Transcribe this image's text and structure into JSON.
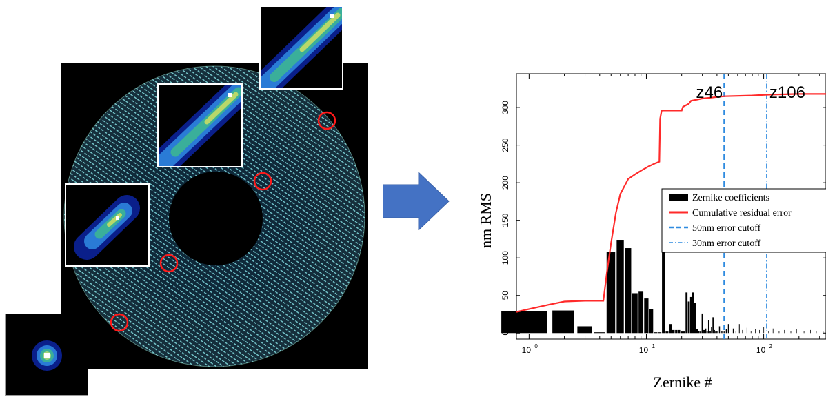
{
  "colors": {
    "arrow": "#4472c4",
    "cumulative_line": "#ff2a2a",
    "cutoff_line": "#2f8be0",
    "bars": "#000000",
    "circle_marker": "#ff1a1a"
  },
  "icons": {
    "arrow": "right-arrow-icon"
  },
  "chart_data": {
    "type": "bar",
    "xscale": "log",
    "xlabel": "Zernike #",
    "ylabel": "nm RMS",
    "xlim": [
      0.78,
      340
    ],
    "ylim": [
      -8,
      345
    ],
    "yticks": [
      0,
      50,
      100,
      150,
      200,
      250,
      300
    ],
    "xticks": [
      {
        "value": 1,
        "base": "10",
        "exp": "0"
      },
      {
        "value": 10,
        "base": "10",
        "exp": "1"
      },
      {
        "value": 100,
        "base": "10",
        "exp": "2"
      }
    ],
    "legend": {
      "placement": "center-right",
      "entries": [
        "Zernike coefficients",
        "Cumulative residual error",
        "50nm error cutoff",
        "30nm error cutoff"
      ]
    },
    "annotations": [
      {
        "text": "z46",
        "x": 46
      },
      {
        "text": "z106",
        "x": 106
      }
    ],
    "cutoffs": [
      {
        "name": "50nm error cutoff",
        "x": 46,
        "style": "dashed"
      },
      {
        "name": "30nm error cutoff",
        "x": 106,
        "style": "dashdot"
      }
    ],
    "series": [
      {
        "name": "Zernike coefficients",
        "kind": "bar",
        "bars": [
          [
            1,
            29
          ],
          [
            2,
            30
          ],
          [
            3,
            9
          ],
          [
            4,
            1
          ],
          [
            5,
            108
          ],
          [
            6,
            124
          ],
          [
            7,
            113
          ],
          [
            8,
            53
          ],
          [
            9,
            55
          ],
          [
            10,
            46
          ],
          [
            11,
            32
          ],
          [
            12,
            1
          ],
          [
            13,
            1
          ],
          [
            14,
            188
          ],
          [
            15,
            2
          ],
          [
            16,
            12
          ],
          [
            17,
            4
          ],
          [
            18,
            4
          ],
          [
            19,
            4
          ],
          [
            20,
            2
          ],
          [
            21,
            2
          ],
          [
            22,
            54
          ],
          [
            23,
            42
          ],
          [
            24,
            48
          ],
          [
            25,
            54
          ],
          [
            26,
            40
          ],
          [
            27,
            5
          ],
          [
            28,
            3
          ],
          [
            29,
            2
          ],
          [
            30,
            26
          ],
          [
            31,
            4
          ],
          [
            32,
            6
          ],
          [
            33,
            2
          ],
          [
            34,
            17
          ],
          [
            35,
            3
          ],
          [
            36,
            8
          ],
          [
            37,
            21
          ],
          [
            38,
            4
          ],
          [
            39,
            2
          ],
          [
            40,
            3
          ],
          [
            42,
            9
          ],
          [
            44,
            3
          ],
          [
            46,
            2
          ],
          [
            48,
            5
          ],
          [
            50,
            12
          ],
          [
            55,
            6
          ],
          [
            58,
            3
          ],
          [
            62,
            12
          ],
          [
            66,
            4
          ],
          [
            72,
            7
          ],
          [
            78,
            3
          ],
          [
            85,
            5
          ],
          [
            92,
            4
          ],
          [
            100,
            8
          ],
          [
            110,
            3
          ],
          [
            120,
            6
          ],
          [
            135,
            3
          ],
          [
            150,
            4
          ],
          [
            170,
            3
          ],
          [
            190,
            5
          ],
          [
            220,
            3
          ],
          [
            250,
            4
          ],
          [
            280,
            3
          ],
          [
            320,
            2
          ]
        ]
      },
      {
        "name": "Cumulative residual error",
        "kind": "line",
        "points": [
          [
            0.78,
            28
          ],
          [
            1,
            32
          ],
          [
            1.5,
            38
          ],
          [
            2,
            42
          ],
          [
            3,
            43
          ],
          [
            4.3,
            43
          ],
          [
            4.6,
            80
          ],
          [
            5,
            120
          ],
          [
            5.5,
            160
          ],
          [
            6,
            185
          ],
          [
            7,
            205
          ],
          [
            8,
            211
          ],
          [
            9,
            216
          ],
          [
            10.5,
            222
          ],
          [
            12,
            226
          ],
          [
            12.9,
            228
          ],
          [
            13.1,
            285
          ],
          [
            13.5,
            296
          ],
          [
            16,
            296
          ],
          [
            20,
            296
          ],
          [
            20.5,
            301
          ],
          [
            23,
            305
          ],
          [
            24,
            309
          ],
          [
            30,
            312
          ],
          [
            40,
            314
          ],
          [
            46,
            315
          ],
          [
            80,
            316
          ],
          [
            106,
            317
          ],
          [
            200,
            318
          ],
          [
            340,
            318
          ]
        ]
      }
    ]
  }
}
